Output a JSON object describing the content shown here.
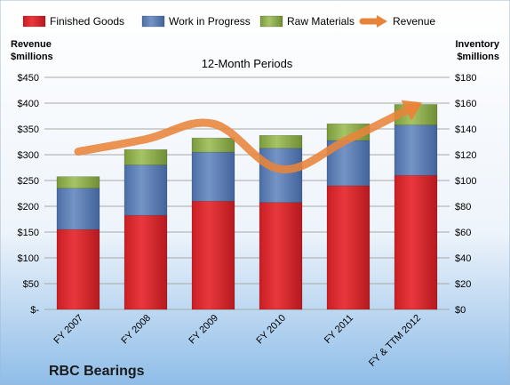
{
  "chart_data": {
    "type": "bar",
    "stacked": true,
    "subtitle": "12-Month Periods",
    "company": "RBC Bearings",
    "categories": [
      "FY 2007",
      "FY 2008",
      "FY 2009",
      "FY 2010",
      "FY 2011",
      "FY & TTM 2012"
    ],
    "series": [
      {
        "name": "Finished Goods",
        "axis": "right",
        "color": "#e0292f",
        "values": [
          62,
          73,
          84,
          83,
          96,
          104
        ]
      },
      {
        "name": "Work in Progress",
        "axis": "right",
        "color": "#5f82b9",
        "values": [
          32,
          39,
          38,
          42,
          35,
          39
        ]
      },
      {
        "name": "Raw Materials",
        "axis": "right",
        "color": "#94b553",
        "values": [
          9,
          12,
          11,
          10,
          13,
          16
        ]
      }
    ],
    "line_series": {
      "name": "Revenue",
      "axis": "left",
      "color": "#e8843a",
      "values": [
        306,
        330,
        360,
        272,
        330,
        395
      ]
    },
    "left_axis": {
      "title_line1": "Revenue",
      "title_line2": "$millions",
      "range": [
        0,
        450
      ],
      "ticks": [
        0,
        50,
        100,
        150,
        200,
        250,
        300,
        350,
        400,
        450
      ],
      "tick_labels": [
        "$-",
        "$50",
        "$100",
        "$150",
        "$200",
        "$250",
        "$300",
        "$350",
        "$400",
        "$450"
      ]
    },
    "right_axis": {
      "title_line1": "Inventory",
      "title_line2": "$millions",
      "range": [
        0,
        180
      ],
      "ticks": [
        0,
        20,
        40,
        60,
        80,
        100,
        120,
        140,
        160,
        180
      ],
      "tick_labels": [
        "$0",
        "$20",
        "$40",
        "$60",
        "$80",
        "$100",
        "$120",
        "$140",
        "$160",
        "$180"
      ]
    },
    "grid": true,
    "legend_position": "top"
  }
}
